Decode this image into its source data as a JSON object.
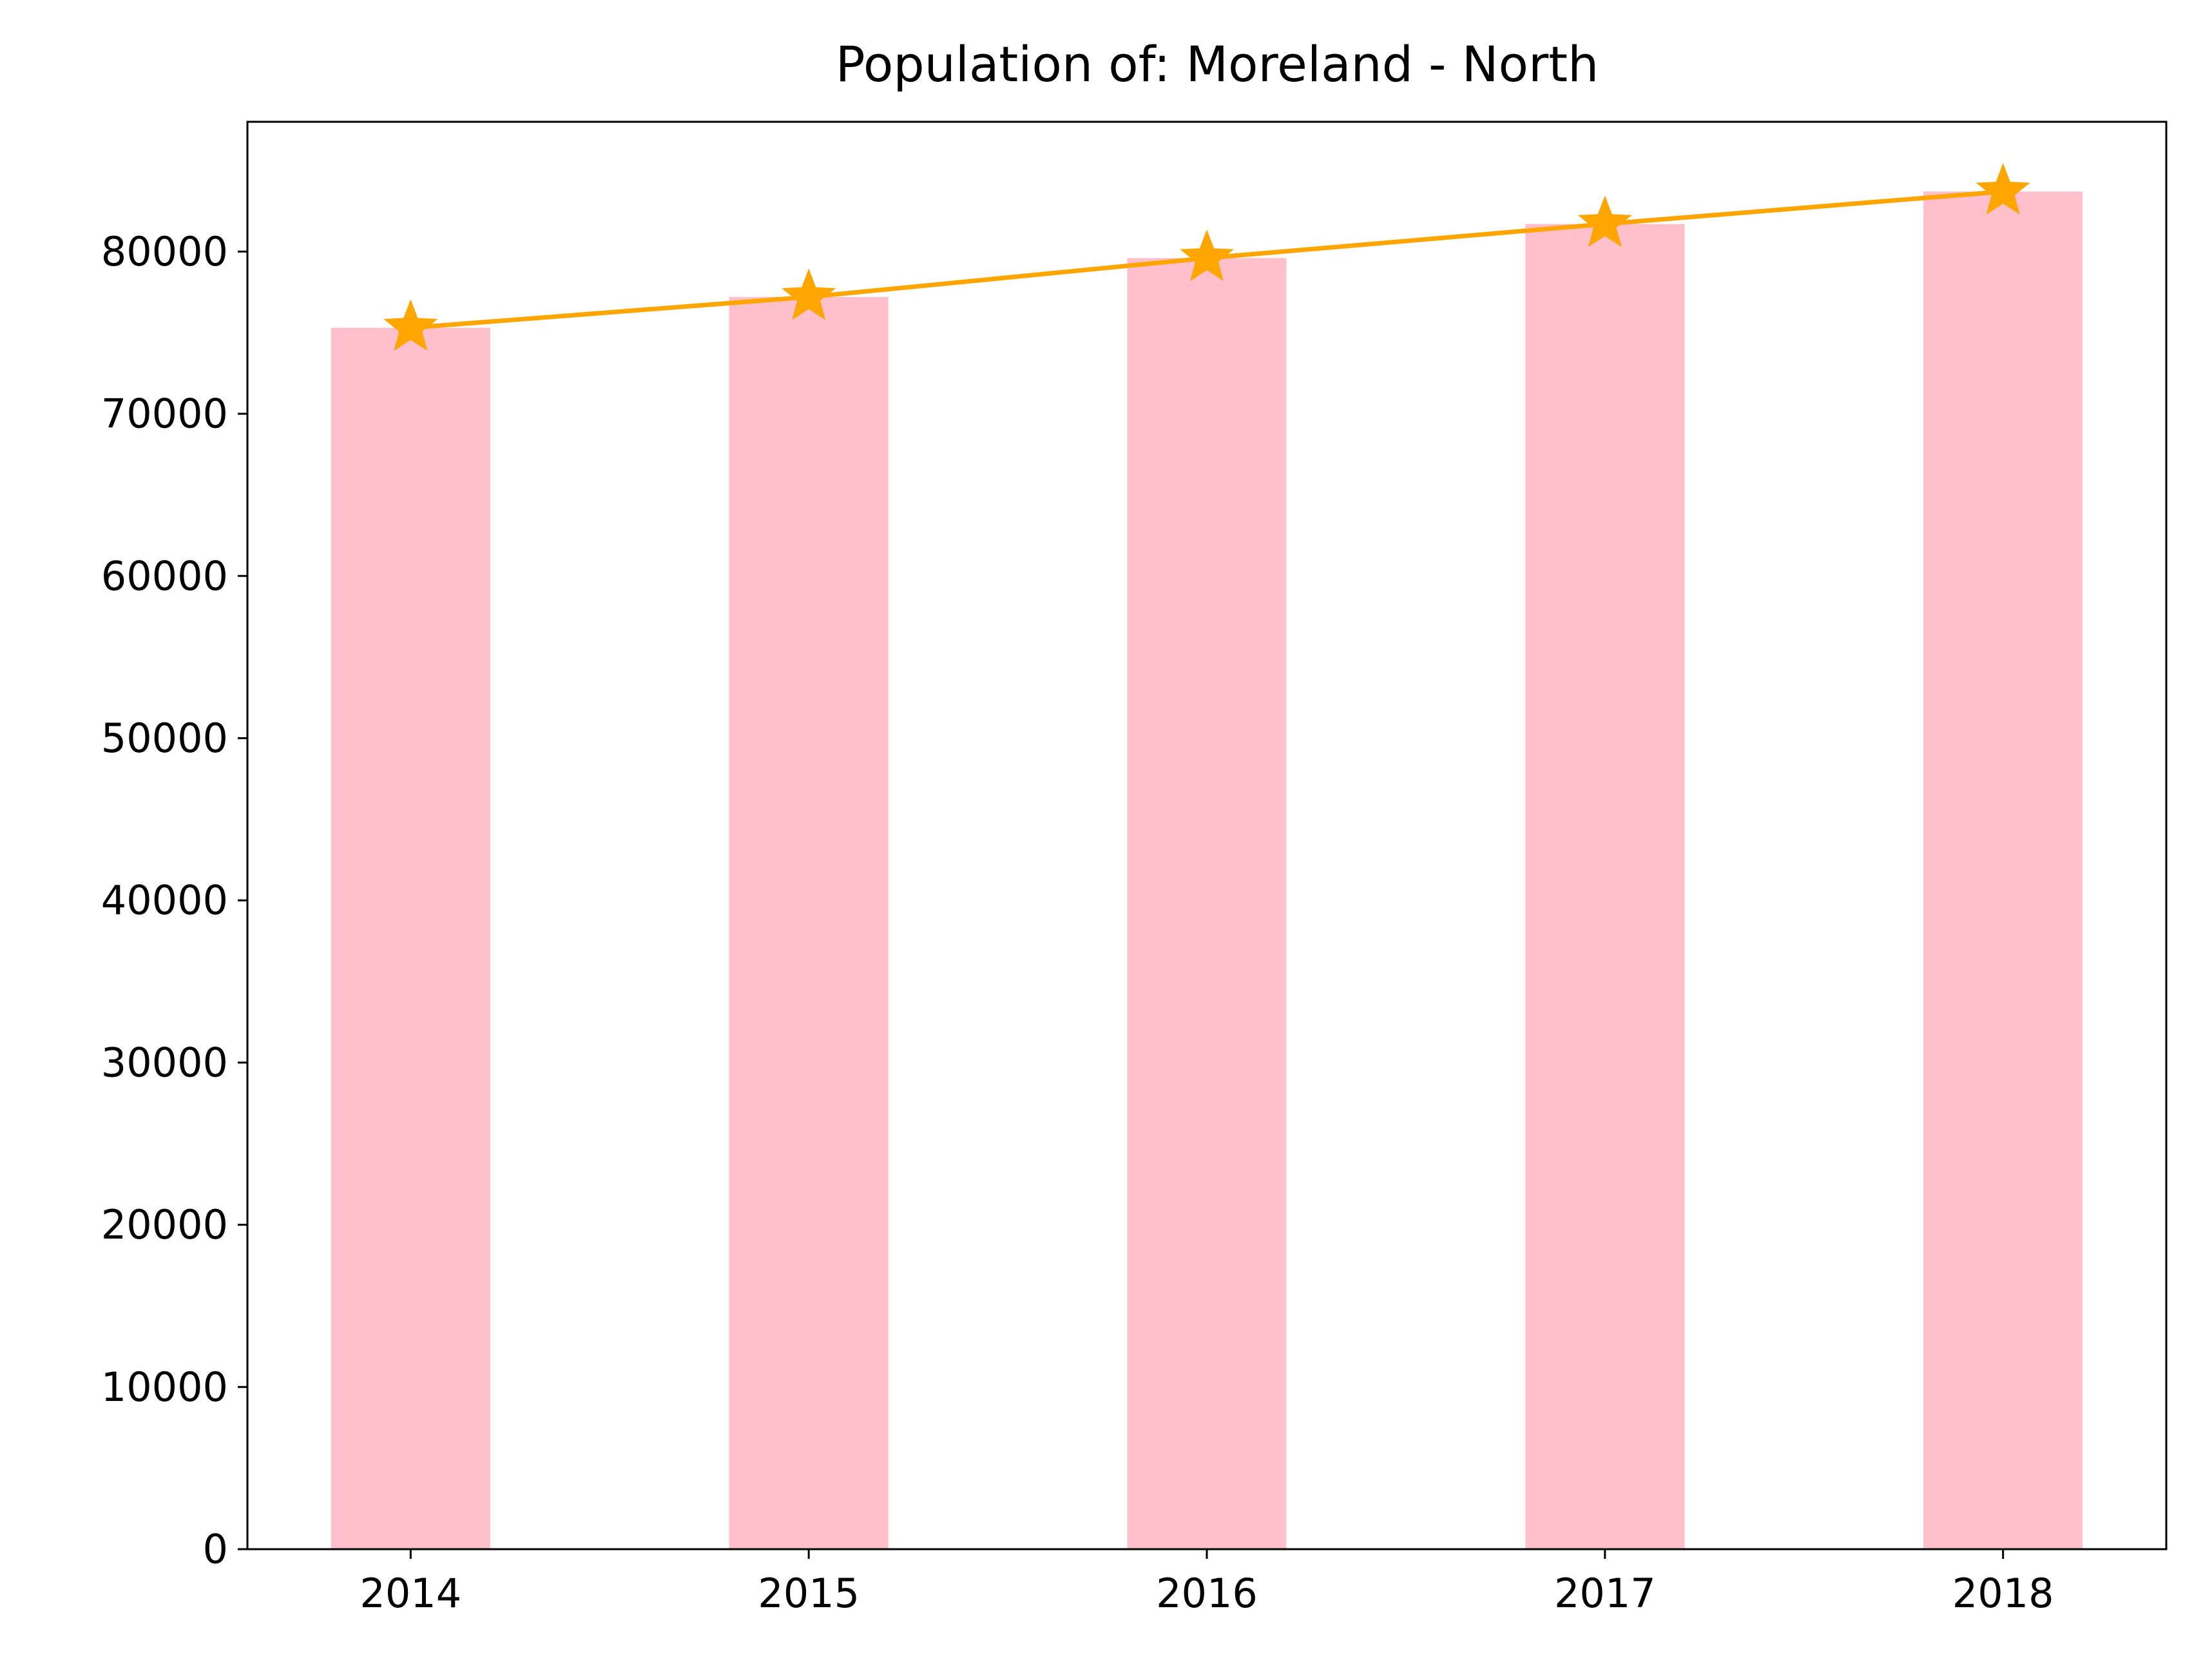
{
  "chart_data": {
    "type": "bar",
    "title": "Population of: Moreland - North",
    "xlabel": "",
    "ylabel": "",
    "categories": [
      "2014",
      "2015",
      "2016",
      "2017",
      "2018"
    ],
    "values": [
      75300,
      77200,
      79600,
      81700,
      83700
    ],
    "line_values": [
      75300,
      77200,
      79600,
      81700,
      83700
    ],
    "ylim": [
      0,
      88000
    ],
    "yticks": [
      "0",
      "10000",
      "20000",
      "30000",
      "40000",
      "50000",
      "60000",
      "70000",
      "80000"
    ],
    "grid": false,
    "legend": "none",
    "marker": "star",
    "colors": {
      "bar": "#ffc0cb",
      "line": "#ffa500",
      "axis": "#000000",
      "background": "#ffffff"
    }
  }
}
